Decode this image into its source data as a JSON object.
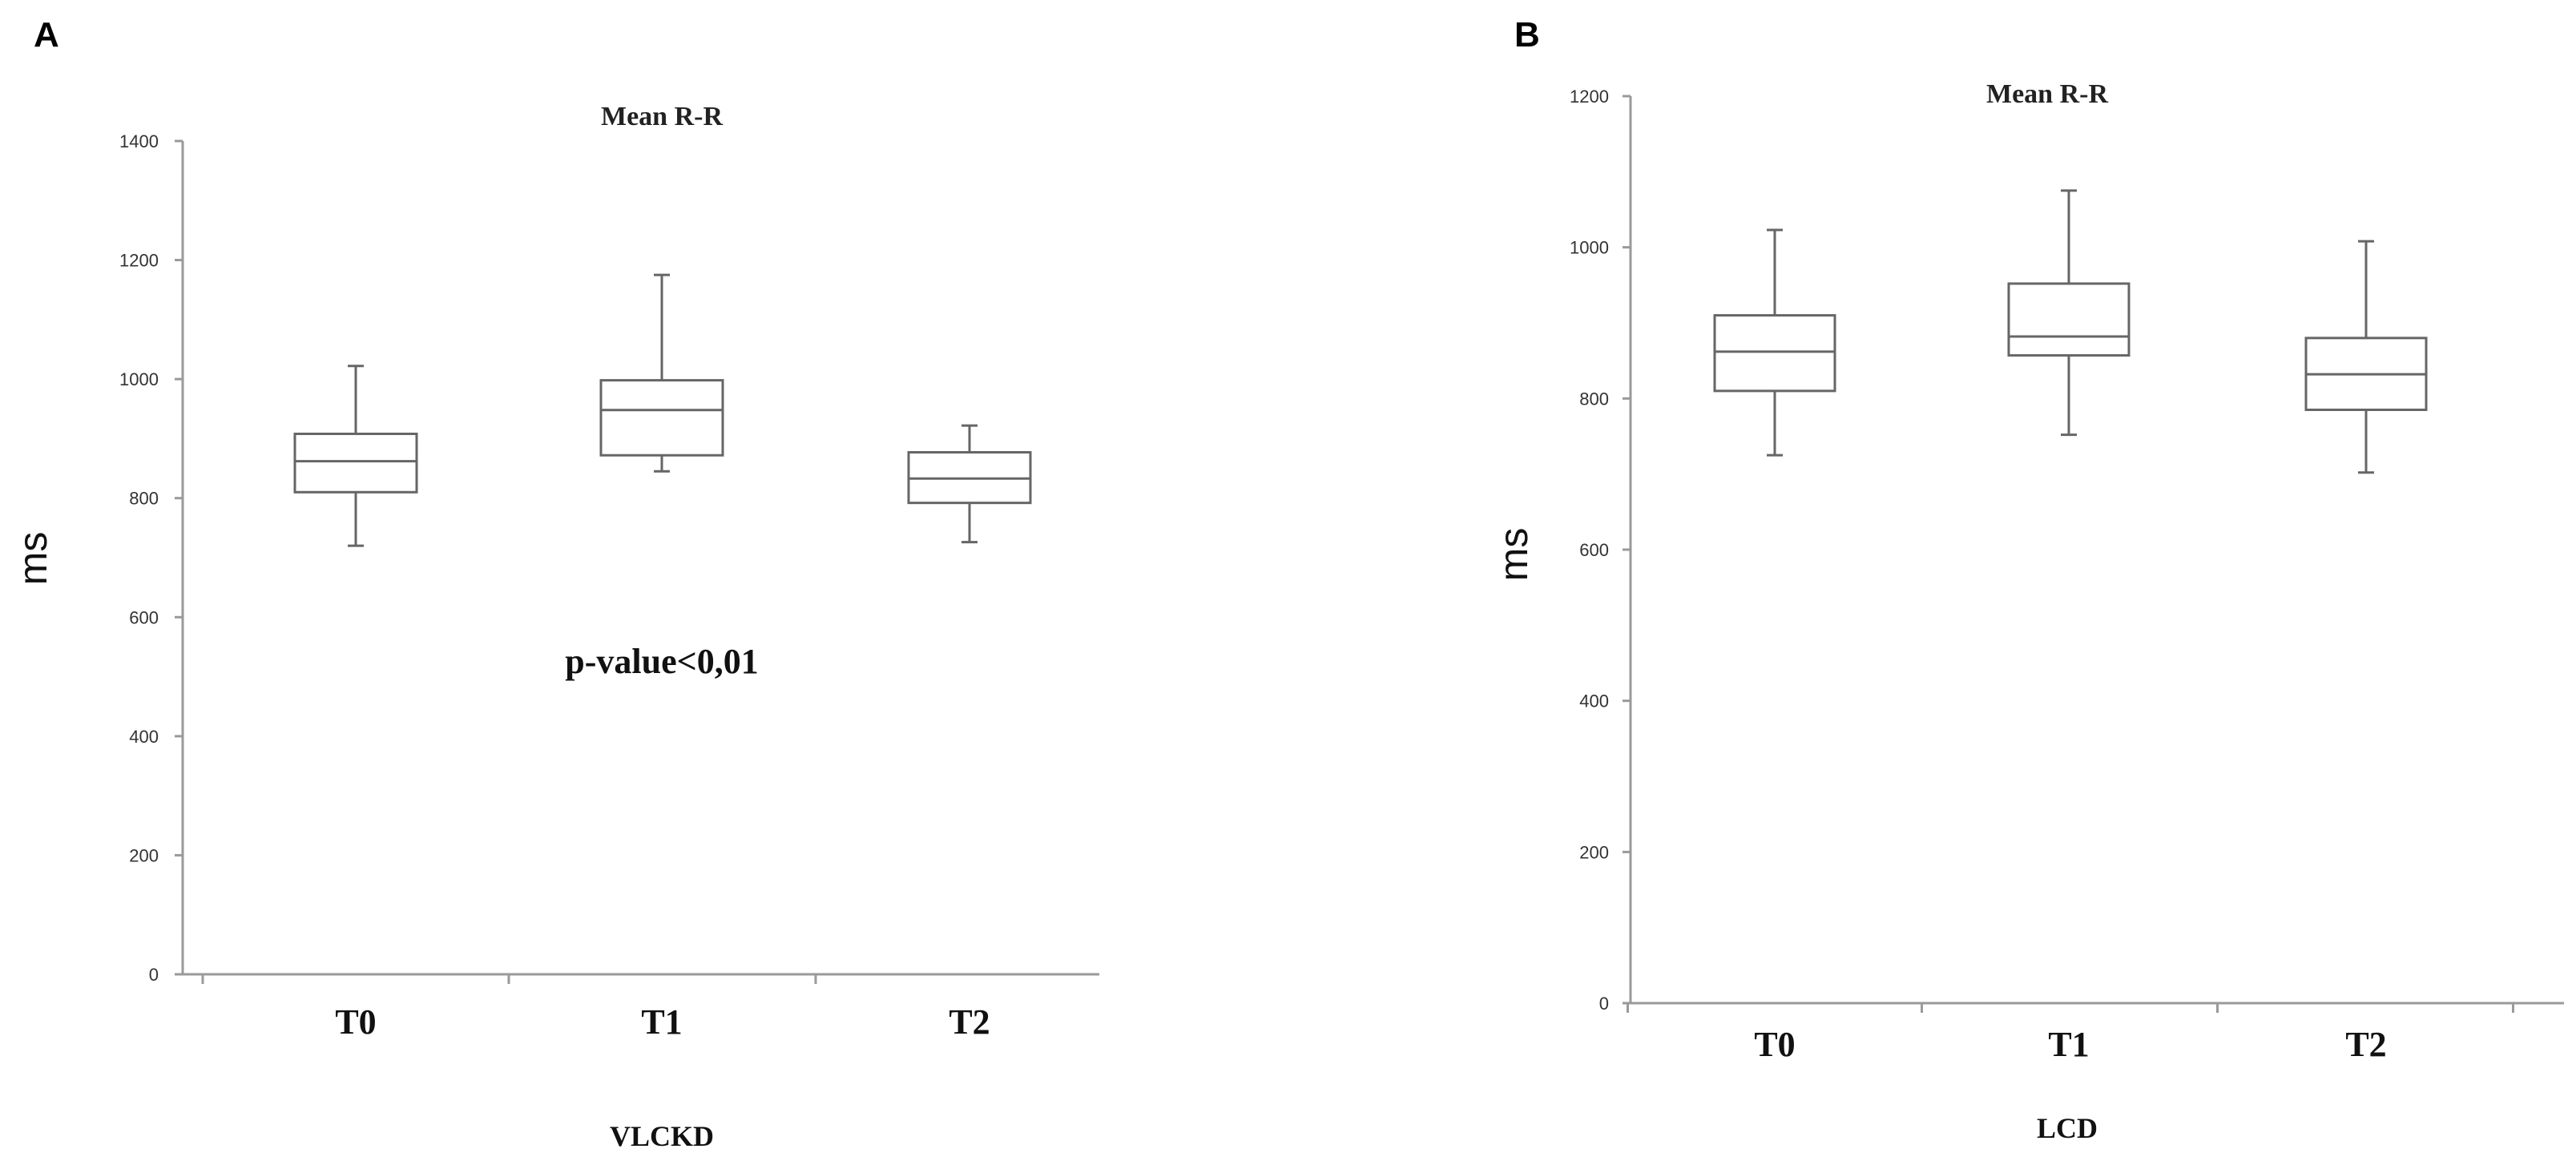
{
  "chart_data": [
    {
      "panel": "A",
      "type": "box",
      "title": "Mean R-R",
      "xlabel": "VLCKD",
      "ylabel": "ms",
      "ylim": [
        0,
        1400
      ],
      "yticks": [
        0,
        200,
        400,
        600,
        800,
        1000,
        1200,
        1400
      ],
      "categories": [
        "T0",
        "T1",
        "T2"
      ],
      "boxes": [
        {
          "min": 720,
          "q1": 810,
          "median": 862,
          "q3": 908,
          "max": 1022
        },
        {
          "min": 845,
          "q1": 872,
          "median": 948,
          "q3": 998,
          "max": 1175
        },
        {
          "min": 726,
          "q1": 792,
          "median": 833,
          "q3": 877,
          "max": 922
        }
      ],
      "annotation": "p-value<0,01"
    },
    {
      "panel": "B",
      "type": "box",
      "title": "Mean R-R",
      "xlabel": "LCD",
      "ylabel": "ms",
      "ylim": [
        0,
        1200
      ],
      "yticks": [
        0,
        200,
        400,
        600,
        800,
        1000,
        1200
      ],
      "categories": [
        "T0",
        "T1",
        "T2"
      ],
      "boxes": [
        {
          "min": 725,
          "q1": 810,
          "median": 862,
          "q3": 910,
          "max": 1023
        },
        {
          "min": 752,
          "q1": 857,
          "median": 882,
          "q3": 952,
          "max": 1075
        },
        {
          "min": 702,
          "q1": 785,
          "median": 832,
          "q3": 880,
          "max": 1008
        }
      ]
    }
  ]
}
